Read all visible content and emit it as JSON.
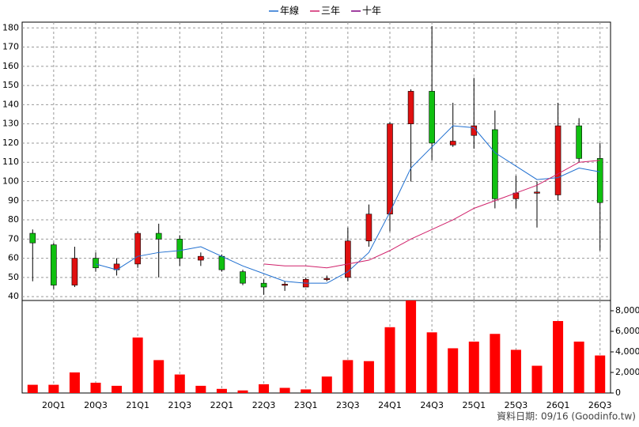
{
  "chart_data": [
    {
      "type": "candlestick",
      "up_color": "#e01010",
      "down_color": "#10c010",
      "grid": true,
      "open": [
        73,
        67,
        46,
        60,
        54,
        57,
        73,
        70,
        59,
        61,
        53,
        47,
        46,
        45,
        49,
        50,
        69,
        83,
        130,
        147,
        119,
        124,
        127,
        91,
        94,
        93,
        129,
        112
      ],
      "high": [
        75,
        68,
        66,
        63,
        60,
        74,
        78,
        72,
        63,
        62,
        54,
        49,
        48,
        50,
        51,
        76,
        88,
        131,
        148,
        181,
        141,
        154,
        137,
        103,
        100,
        141,
        133,
        120
      ],
      "low": [
        48,
        44,
        45,
        53,
        51,
        55,
        50,
        56,
        56,
        53,
        46,
        41,
        43,
        45,
        48,
        48,
        66,
        74,
        100,
        111,
        118,
        117,
        86,
        86,
        76,
        90,
        110,
        64
      ],
      "close": [
        68,
        46,
        60,
        55,
        57,
        73,
        70,
        60,
        61,
        54,
        47,
        45,
        46.5,
        49,
        49.5,
        69,
        83,
        130,
        147,
        120,
        121,
        129,
        91,
        94,
        94.5,
        129,
        112,
        89
      ],
      "series": [
        {
          "name": "年線",
          "color": "#1f6fd0",
          "values": [
            null,
            null,
            null,
            57,
            54,
            61,
            63,
            64,
            66,
            61,
            56,
            52,
            48,
            47,
            47,
            53,
            63,
            84,
            107,
            118,
            129,
            128,
            115,
            108,
            101,
            102,
            107,
            105
          ]
        },
        {
          "name": "三年",
          "color": "#d0206a",
          "values": [
            null,
            null,
            null,
            null,
            null,
            null,
            null,
            null,
            null,
            null,
            null,
            57,
            56,
            56,
            55,
            57,
            59,
            64,
            70,
            75,
            80,
            86,
            90,
            94,
            98,
            104,
            110,
            111
          ]
        },
        {
          "name": "十年",
          "color": "#800080",
          "values": [
            null,
            null,
            null,
            null,
            null,
            null,
            null,
            null,
            null,
            null,
            null,
            null,
            null,
            null,
            null,
            null,
            null,
            null,
            null,
            null,
            null,
            null,
            null,
            null,
            null,
            null,
            null,
            null
          ]
        }
      ],
      "ylim": [
        38,
        183
      ],
      "yticks": [
        40,
        50,
        60,
        70,
        80,
        90,
        100,
        110,
        120,
        130,
        140,
        150,
        160,
        170,
        180
      ]
    },
    {
      "type": "bar",
      "color": "#ff0000",
      "grid": true,
      "categories": [
        null,
        "20Q1",
        null,
        "20Q3",
        null,
        "21Q1",
        null,
        "21Q3",
        null,
        "22Q1",
        null,
        "22Q3",
        null,
        "23Q1",
        null,
        "23Q3",
        null,
        "24Q1",
        null,
        "24Q3",
        null,
        "25Q1",
        null,
        "25Q3",
        null,
        "26Q1",
        null,
        "26Q3"
      ],
      "values": [
        800,
        800,
        2000,
        1000,
        700,
        5400,
        3200,
        1800,
        700,
        400,
        250,
        850,
        500,
        350,
        1600,
        3200,
        3100,
        6400,
        9000,
        5900,
        4350,
        5000,
        5750,
        4200,
        2650,
        7000,
        5000,
        3650
      ],
      "ylim": [
        0,
        9000
      ],
      "yticks": [
        0,
        {
          "value": 2000,
          "label": "2,000"
        },
        {
          "value": 4000,
          "label": "4,000"
        },
        {
          "value": 6000,
          "label": "6,000"
        },
        {
          "value": 8000,
          "label": "8,000"
        }
      ]
    }
  ],
  "footer": "資料日期: 09/16  (Goodinfo.tw)"
}
